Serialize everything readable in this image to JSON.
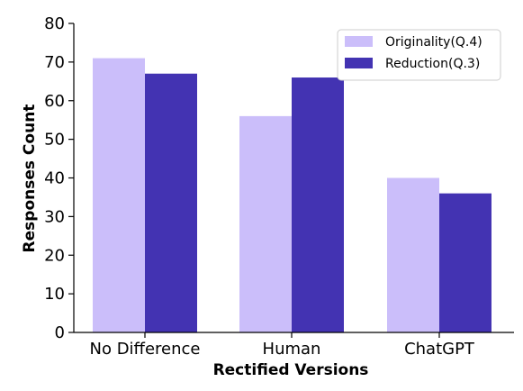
{
  "chart_data": {
    "type": "bar",
    "xlabel": "Rectified Versions",
    "ylabel": "Responses Count",
    "categories": [
      "No Difference",
      "Human",
      "ChatGPT"
    ],
    "series": [
      {
        "name": "Originality(Q.4)",
        "values": [
          71,
          56,
          40
        ],
        "color": "#cbbefa"
      },
      {
        "name": "Reduction(Q.3)",
        "values": [
          67,
          66,
          36
        ],
        "color": "#4333b2"
      }
    ],
    "ylim": [
      0,
      80
    ],
    "yticks": [
      "0",
      "10",
      "20",
      "30",
      "40",
      "50",
      "60",
      "70",
      "80"
    ],
    "grid": false,
    "legend_position": "top-right"
  }
}
